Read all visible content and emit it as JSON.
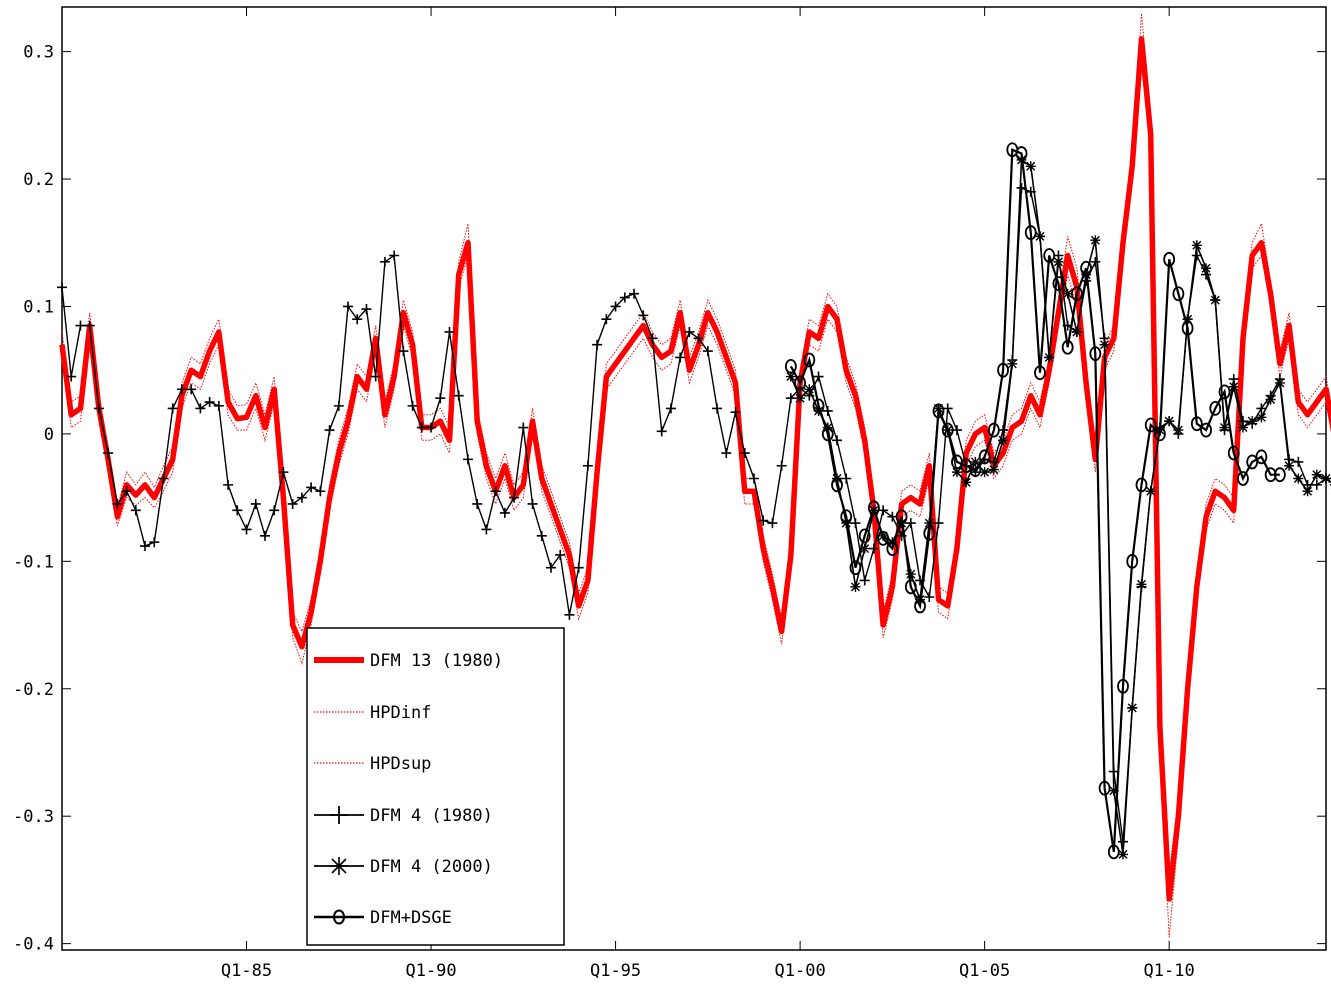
{
  "chart_data": {
    "type": "line",
    "title": "",
    "xlabel": "",
    "ylabel": "",
    "xlim": [
      1980.0,
      2014.25
    ],
    "ylim": [
      -0.405,
      0.335
    ],
    "yticks": [
      0.3,
      0.2,
      0.1,
      0,
      -0.1,
      -0.2,
      -0.3,
      -0.4
    ],
    "ytick_labels": [
      "0.3",
      "0.2",
      "0.1",
      "0",
      "-0.1",
      "-0.2",
      "-0.3",
      "-0.4"
    ],
    "xticks": [
      1985,
      1990,
      1995,
      2000,
      2005,
      2010
    ],
    "xtick_labels": [
      "Q1-85",
      "Q1-90",
      "Q1-95",
      "Q1-00",
      "Q1-05",
      "Q1-10"
    ],
    "grid": false,
    "legend_position": "bottom-left",
    "colors": {
      "red": "#ff0000",
      "black": "#000000"
    },
    "series": [
      {
        "name": "DFM 13 (1980)",
        "style": "thick-red",
        "x0": 1980.0,
        "dx": 0.25,
        "values": [
          0.07,
          0.015,
          0.02,
          0.085,
          0.02,
          -0.02,
          -0.065,
          -0.04,
          -0.048,
          -0.04,
          -0.05,
          -0.035,
          -0.02,
          0.03,
          0.05,
          0.045,
          0.065,
          0.08,
          0.025,
          0.012,
          0.013,
          0.03,
          0.005,
          0.035,
          -0.05,
          -0.15,
          -0.167,
          -0.14,
          -0.1,
          -0.05,
          -0.015,
          0.01,
          0.045,
          0.035,
          0.075,
          0.015,
          0.045,
          0.095,
          0.07,
          0.005,
          0.005,
          0.01,
          -0.005,
          0.125,
          0.15,
          0.01,
          -0.025,
          -0.045,
          -0.025,
          -0.05,
          -0.04,
          0.01,
          -0.035,
          -0.055,
          -0.075,
          -0.095,
          -0.135,
          -0.115,
          -0.03,
          0.045,
          0.055,
          0.065,
          0.075,
          0.085,
          0.07,
          0.06,
          0.065,
          0.095,
          0.05,
          0.07,
          0.095,
          0.08,
          0.06,
          0.04,
          -0.045,
          -0.045,
          -0.09,
          -0.12,
          -0.155,
          -0.095,
          0.04,
          0.08,
          0.075,
          0.1,
          0.09,
          0.05,
          0.03,
          -0.005,
          -0.06,
          -0.15,
          -0.12,
          -0.055,
          -0.05,
          -0.055,
          -0.025,
          -0.13,
          -0.135,
          -0.09,
          -0.015,
          0.0,
          0.005,
          -0.025,
          -0.015,
          0.005,
          0.01,
          0.03,
          0.015,
          0.05,
          0.095,
          0.14,
          0.115,
          0.04,
          -0.02,
          0.06,
          0.075,
          0.15,
          0.21,
          0.31,
          0.235,
          -0.23,
          -0.365,
          -0.3,
          -0.2,
          -0.12,
          -0.065,
          -0.045,
          -0.05,
          -0.06,
          0.075,
          0.14,
          0.15,
          0.11,
          0.055,
          0.085,
          0.025,
          0.015,
          0.025,
          0.035,
          -0.005,
          -0.015,
          0.005,
          -0.005,
          -0.005,
          0.005,
          -0.035
        ],
        "band_lower": [
          0.06,
          0.005,
          0.01,
          0.075,
          0.01,
          -0.03,
          -0.072,
          -0.05,
          -0.056,
          -0.05,
          -0.058,
          -0.045,
          -0.03,
          0.02,
          0.04,
          0.035,
          0.055,
          0.07,
          0.015,
          0.003,
          0.003,
          0.02,
          -0.005,
          0.025,
          -0.06,
          -0.16,
          -0.18,
          -0.15,
          -0.11,
          -0.06,
          -0.025,
          0.0,
          0.035,
          0.025,
          0.065,
          0.005,
          0.035,
          0.085,
          0.06,
          -0.005,
          -0.005,
          0.0,
          -0.015,
          0.115,
          0.14,
          0.0,
          -0.035,
          -0.055,
          -0.035,
          -0.06,
          -0.05,
          0.0,
          -0.045,
          -0.065,
          -0.085,
          -0.105,
          -0.145,
          -0.125,
          -0.04,
          0.035,
          0.045,
          0.055,
          0.065,
          0.075,
          0.06,
          0.05,
          0.055,
          0.085,
          0.04,
          0.06,
          0.085,
          0.07,
          0.05,
          0.03,
          -0.055,
          -0.055,
          -0.1,
          -0.13,
          -0.165,
          -0.105,
          0.03,
          0.07,
          0.065,
          0.09,
          0.08,
          0.04,
          0.02,
          -0.015,
          -0.07,
          -0.16,
          -0.13,
          -0.065,
          -0.06,
          -0.065,
          -0.035,
          -0.14,
          -0.145,
          -0.1,
          -0.025,
          -0.01,
          -0.005,
          -0.035,
          -0.025,
          -0.005,
          0.0,
          0.02,
          0.005,
          0.04,
          0.085,
          0.125,
          0.1,
          0.025,
          -0.03,
          0.05,
          0.065,
          0.14,
          0.2,
          0.29,
          0.22,
          -0.245,
          -0.395,
          -0.315,
          -0.21,
          -0.13,
          -0.075,
          -0.055,
          -0.06,
          -0.07,
          0.065,
          0.13,
          0.14,
          0.1,
          0.045,
          0.075,
          0.015,
          0.005,
          0.015,
          0.025,
          -0.015,
          -0.025,
          -0.005,
          -0.015,
          -0.015,
          -0.005,
          -0.045
        ],
        "band_upper": [
          0.08,
          0.025,
          0.03,
          0.095,
          0.03,
          -0.01,
          -0.058,
          -0.03,
          -0.04,
          -0.03,
          -0.042,
          -0.025,
          -0.01,
          0.04,
          0.06,
          0.055,
          0.075,
          0.09,
          0.035,
          0.022,
          0.023,
          0.04,
          0.015,
          0.045,
          -0.04,
          -0.14,
          -0.155,
          -0.13,
          -0.09,
          -0.04,
          -0.005,
          0.02,
          0.055,
          0.045,
          0.085,
          0.025,
          0.055,
          0.105,
          0.08,
          0.015,
          0.015,
          0.02,
          0.005,
          0.135,
          0.165,
          0.02,
          -0.015,
          -0.035,
          -0.015,
          -0.04,
          -0.03,
          0.02,
          -0.025,
          -0.045,
          -0.065,
          -0.085,
          -0.125,
          -0.105,
          -0.02,
          0.055,
          0.065,
          0.075,
          0.085,
          0.095,
          0.08,
          0.07,
          0.075,
          0.105,
          0.06,
          0.08,
          0.105,
          0.09,
          0.07,
          0.05,
          -0.035,
          -0.035,
          -0.08,
          -0.11,
          -0.145,
          -0.085,
          0.05,
          0.09,
          0.085,
          0.11,
          0.1,
          0.06,
          0.04,
          0.005,
          -0.05,
          -0.14,
          -0.11,
          -0.045,
          -0.04,
          -0.045,
          -0.015,
          -0.12,
          -0.125,
          -0.08,
          -0.005,
          0.01,
          0.015,
          -0.015,
          -0.005,
          0.015,
          0.02,
          0.04,
          0.025,
          0.06,
          0.105,
          0.155,
          0.13,
          0.055,
          -0.01,
          0.07,
          0.085,
          0.16,
          0.22,
          0.33,
          0.25,
          -0.215,
          -0.345,
          -0.285,
          -0.19,
          -0.11,
          -0.055,
          -0.035,
          -0.04,
          -0.05,
          0.085,
          0.15,
          0.165,
          0.12,
          0.065,
          0.095,
          0.035,
          0.025,
          0.035,
          0.045,
          0.005,
          -0.005,
          0.015,
          0.005,
          0.005,
          0.015,
          -0.025
        ]
      },
      {
        "name": "HPDinf",
        "style": "dotted-red"
      },
      {
        "name": "HPDsup",
        "style": "dotted-red"
      },
      {
        "name": "DFM 4 (1980)",
        "style": "black-plus",
        "x0": 1980.0,
        "dx": 0.25,
        "values": [
          0.115,
          0.045,
          0.085,
          0.085,
          0.02,
          -0.015,
          -0.055,
          -0.045,
          -0.06,
          -0.088,
          -0.085,
          -0.035,
          0.02,
          0.035,
          0.035,
          0.02,
          0.025,
          0.022,
          -0.04,
          -0.06,
          -0.075,
          -0.055,
          -0.08,
          -0.06,
          -0.03,
          -0.055,
          -0.05,
          -0.042,
          -0.045,
          0.003,
          0.022,
          0.1,
          0.09,
          0.098,
          0.045,
          0.135,
          0.14,
          0.065,
          0.022,
          0.005,
          0.005,
          0.028,
          0.08,
          0.03,
          -0.02,
          -0.055,
          -0.075,
          -0.045,
          -0.062,
          -0.05,
          0.005,
          -0.055,
          -0.08,
          -0.105,
          -0.095,
          -0.142,
          -0.105,
          -0.025,
          0.07,
          0.09,
          0.1,
          0.107,
          0.11,
          0.093,
          0.075,
          0.002,
          0.02,
          0.06,
          0.08,
          0.075,
          0.065,
          0.02,
          -0.015,
          0.017,
          -0.015,
          -0.035,
          -0.068,
          -0.07,
          -0.025,
          0.028,
          0.036,
          0.03,
          0.045,
          0.018,
          -0.005,
          -0.035,
          -0.07,
          -0.115,
          -0.09,
          -0.06,
          -0.065,
          -0.08,
          -0.07,
          -0.115,
          -0.128,
          -0.07,
          0.02,
          0.003,
          -0.025,
          -0.03,
          -0.02,
          -0.022,
          0.003,
          0.058,
          0.193,
          0.19,
          0.155,
          0.06,
          0.14,
          0.085,
          0.08,
          0.12,
          0.135,
          0.075,
          -0.265,
          -0.32,
          -0.215,
          -0.12,
          -0.045,
          0.005,
          0.01,
          0.0,
          0.09,
          0.14,
          0.125,
          0.105,
          0.003,
          0.043,
          0.01,
          0.008,
          0.02,
          0.03,
          0.043,
          -0.02,
          -0.022,
          -0.04,
          -0.04,
          -0.035,
          -0.04
        ],
        "x0_note": ""
      },
      {
        "name": "DFM 4 (2000)",
        "style": "black-star",
        "x0": 1999.75,
        "dx": 0.25,
        "values": [
          0.045,
          0.028,
          0.035,
          0.018,
          0.005,
          -0.035,
          -0.07,
          -0.12,
          -0.09,
          -0.06,
          -0.08,
          -0.085,
          -0.07,
          -0.11,
          -0.13,
          -0.07,
          0.02,
          0.003,
          -0.03,
          -0.038,
          -0.022,
          -0.03,
          -0.028,
          -0.005,
          0.055,
          0.215,
          0.21,
          0.155,
          0.06,
          0.135,
          0.11,
          0.08,
          0.125,
          0.152,
          0.07,
          -0.28,
          -0.33,
          -0.215,
          -0.118,
          -0.045,
          0.003,
          0.01,
          0.003,
          0.09,
          0.148,
          0.13,
          0.105,
          0.005,
          0.037,
          0.005,
          0.01,
          0.013,
          0.027,
          0.04,
          -0.025,
          -0.035,
          -0.045,
          -0.032,
          -0.035,
          -0.04
        ]
      },
      {
        "name": "DFM+DSGE",
        "style": "black-circle",
        "x0": 1999.75,
        "dx": 0.25,
        "values": [
          0.053,
          0.04,
          0.058,
          0.022,
          0.0,
          -0.04,
          -0.065,
          -0.105,
          -0.08,
          -0.058,
          -0.082,
          -0.09,
          -0.065,
          -0.12,
          -0.135,
          -0.078,
          0.018,
          0.003,
          -0.022,
          -0.025,
          -0.028,
          -0.018,
          0.003,
          0.05,
          0.223,
          0.22,
          0.158,
          0.048,
          0.14,
          0.118,
          0.068,
          0.11,
          0.13,
          0.063,
          -0.278,
          -0.328,
          -0.198,
          -0.1,
          -0.04,
          0.007,
          0.0,
          0.137,
          0.11,
          0.083,
          0.008,
          0.003,
          0.02,
          0.033,
          -0.015,
          -0.035,
          -0.022,
          -0.018,
          -0.032,
          -0.032
        ]
      }
    ]
  }
}
